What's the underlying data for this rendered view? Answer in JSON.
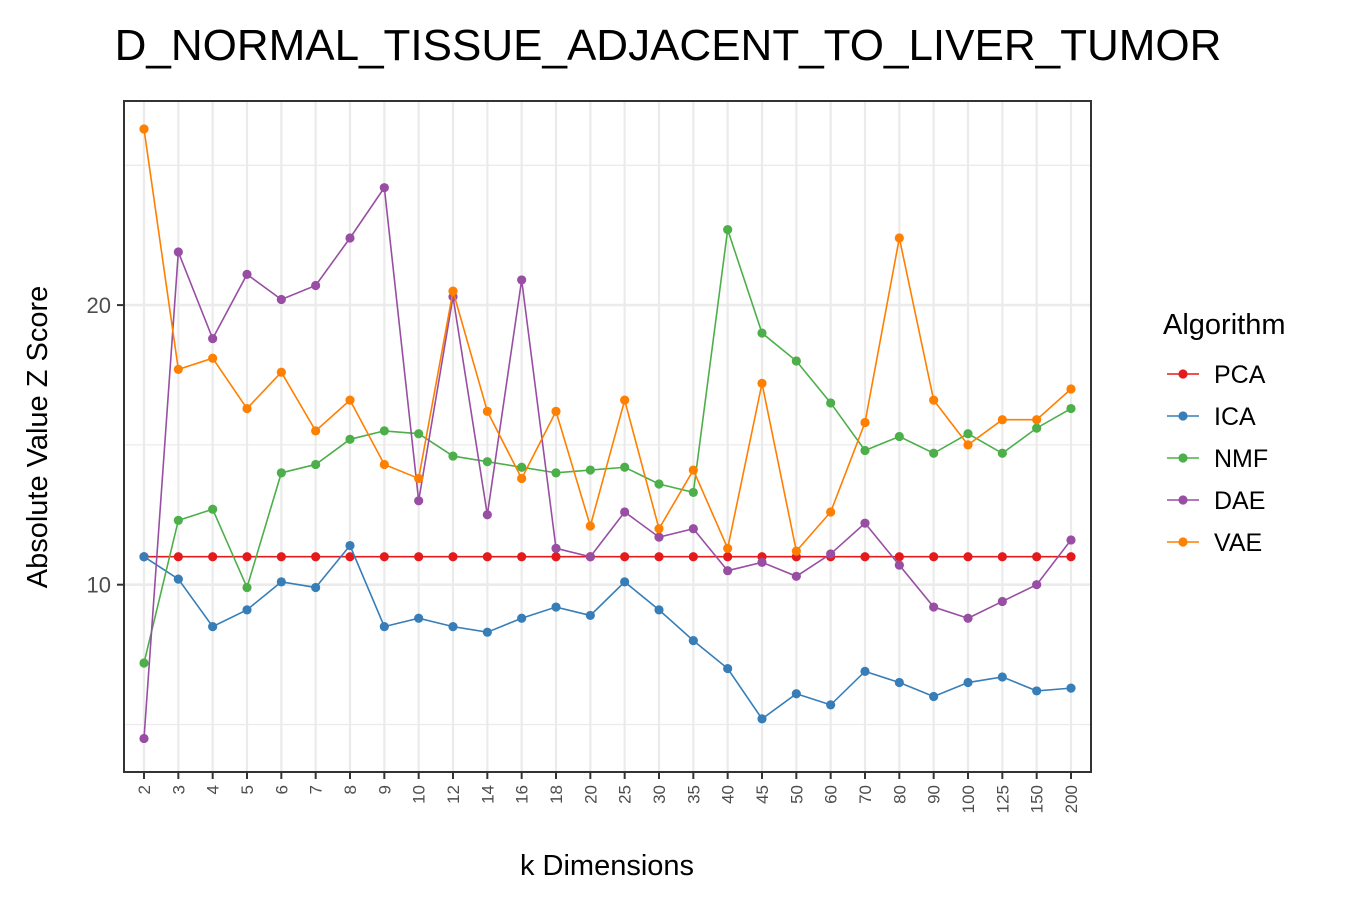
{
  "chart_data": {
    "type": "line",
    "title": "D_NORMAL_TISSUE_ADJACENT_TO_LIVER_TUMOR",
    "xlabel": "k Dimensions",
    "ylabel": "Absolute Value Z Score",
    "ylim": [
      3.3,
      27.3
    ],
    "y_ticks": [
      10,
      20
    ],
    "grid": true,
    "legend_title": "Algorithm",
    "legend_position": "right",
    "categories": [
      "2",
      "3",
      "4",
      "5",
      "6",
      "7",
      "8",
      "9",
      "10",
      "12",
      "14",
      "16",
      "18",
      "20",
      "25",
      "30",
      "35",
      "40",
      "45",
      "50",
      "60",
      "70",
      "80",
      "90",
      "100",
      "125",
      "150",
      "200"
    ],
    "series": [
      {
        "name": "PCA",
        "color": "#e41a1c",
        "values": [
          11.0,
          11.0,
          11.0,
          11.0,
          11.0,
          11.0,
          11.0,
          11.0,
          11.0,
          11.0,
          11.0,
          11.0,
          11.0,
          11.0,
          11.0,
          11.0,
          11.0,
          11.0,
          11.0,
          11.0,
          11.0,
          11.0,
          11.0,
          11.0,
          11.0,
          11.0,
          11.0,
          11.0
        ]
      },
      {
        "name": "ICA",
        "color": "#377eb8",
        "values": [
          11.0,
          10.2,
          8.5,
          9.1,
          10.1,
          9.9,
          11.4,
          8.5,
          8.8,
          8.5,
          8.3,
          8.8,
          9.2,
          8.9,
          10.1,
          9.1,
          8.0,
          7.0,
          5.2,
          6.1,
          5.7,
          6.9,
          6.5,
          6.0,
          6.5,
          6.7,
          6.2,
          6.3
        ]
      },
      {
        "name": "NMF",
        "color": "#4daf4a",
        "values": [
          7.2,
          12.3,
          12.7,
          9.9,
          14.0,
          14.3,
          15.2,
          15.5,
          15.4,
          14.6,
          14.4,
          14.2,
          14.0,
          14.1,
          14.2,
          13.6,
          13.3,
          22.7,
          19.0,
          18.0,
          16.5,
          14.8,
          15.3,
          14.7,
          15.4,
          14.7,
          15.6,
          16.3
        ]
      },
      {
        "name": "DAE",
        "color": "#984ea3",
        "values": [
          4.5,
          21.9,
          18.8,
          21.1,
          20.2,
          20.7,
          22.4,
          24.2,
          13.0,
          20.3,
          12.5,
          20.9,
          11.3,
          11.0,
          12.6,
          11.7,
          12.0,
          10.5,
          10.8,
          10.3,
          11.1,
          12.2,
          10.7,
          9.2,
          8.8,
          9.4,
          10.0,
          11.6
        ]
      },
      {
        "name": "VAE",
        "color": "#ff7f00",
        "values": [
          26.3,
          17.7,
          18.1,
          16.3,
          17.6,
          15.5,
          16.6,
          14.3,
          13.8,
          20.5,
          16.2,
          13.8,
          16.2,
          12.1,
          16.6,
          12.0,
          14.1,
          11.3,
          17.2,
          11.2,
          12.6,
          15.8,
          22.4,
          16.6,
          15.0,
          15.9,
          15.9,
          17.0
        ]
      }
    ]
  }
}
